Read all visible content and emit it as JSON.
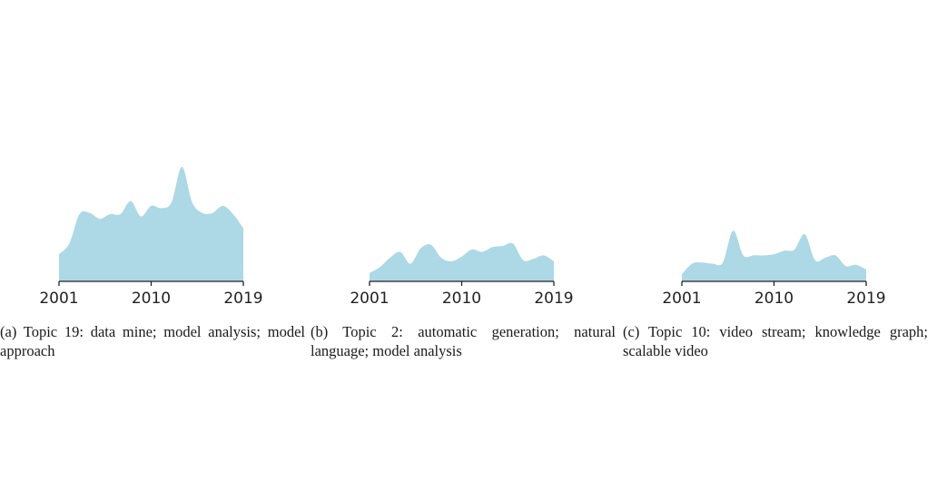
{
  "fill_color": "#add8e6",
  "chart_data": [
    {
      "type": "area",
      "caption": "(a) Topic 19: data mine; model analysis; model approach",
      "x_ticks": [
        "2001",
        "2010",
        "2019"
      ],
      "xlim": [
        2001,
        2019
      ],
      "ylim": [
        0,
        1
      ],
      "grid": false,
      "x": [
        2001,
        2002,
        2003,
        2004,
        2005,
        2006,
        2007,
        2008,
        2009,
        2010,
        2011,
        2012,
        2013,
        2014,
        2015,
        2016,
        2017,
        2018,
        2019
      ],
      "values": [
        0.23,
        0.32,
        0.57,
        0.58,
        0.53,
        0.57,
        0.57,
        0.68,
        0.55,
        0.64,
        0.62,
        0.67,
        0.97,
        0.67,
        0.58,
        0.58,
        0.64,
        0.57,
        0.45
      ]
    },
    {
      "type": "area",
      "caption": "(b) Topic 2: automatic generation; natural language; model analysis",
      "x_ticks": [
        "2001",
        "2010",
        "2019"
      ],
      "xlim": [
        2001,
        2019
      ],
      "ylim": [
        0,
        1
      ],
      "grid": false,
      "x": [
        2001,
        2002,
        2003,
        2004,
        2005,
        2006,
        2007,
        2008,
        2009,
        2010,
        2011,
        2012,
        2013,
        2014,
        2015,
        2016,
        2017,
        2018,
        2019
      ],
      "values": [
        0.07,
        0.12,
        0.2,
        0.25,
        0.15,
        0.28,
        0.31,
        0.2,
        0.17,
        0.21,
        0.27,
        0.25,
        0.29,
        0.3,
        0.32,
        0.18,
        0.19,
        0.22,
        0.17
      ]
    },
    {
      "type": "area",
      "caption": "(c) Topic 10: video stream; knowledge graph; scalable video",
      "x_ticks": [
        "2001",
        "2010",
        "2019"
      ],
      "xlim": [
        2001,
        2019
      ],
      "ylim": [
        0,
        1
      ],
      "grid": false,
      "x": [
        2001,
        2002,
        2003,
        2004,
        2005,
        2006,
        2007,
        2008,
        2009,
        2010,
        2011,
        2012,
        2013,
        2014,
        2015,
        2016,
        2017,
        2018,
        2019
      ],
      "values": [
        0.06,
        0.15,
        0.16,
        0.15,
        0.16,
        0.43,
        0.22,
        0.22,
        0.22,
        0.23,
        0.26,
        0.27,
        0.4,
        0.18,
        0.2,
        0.22,
        0.13,
        0.14,
        0.1
      ]
    }
  ]
}
